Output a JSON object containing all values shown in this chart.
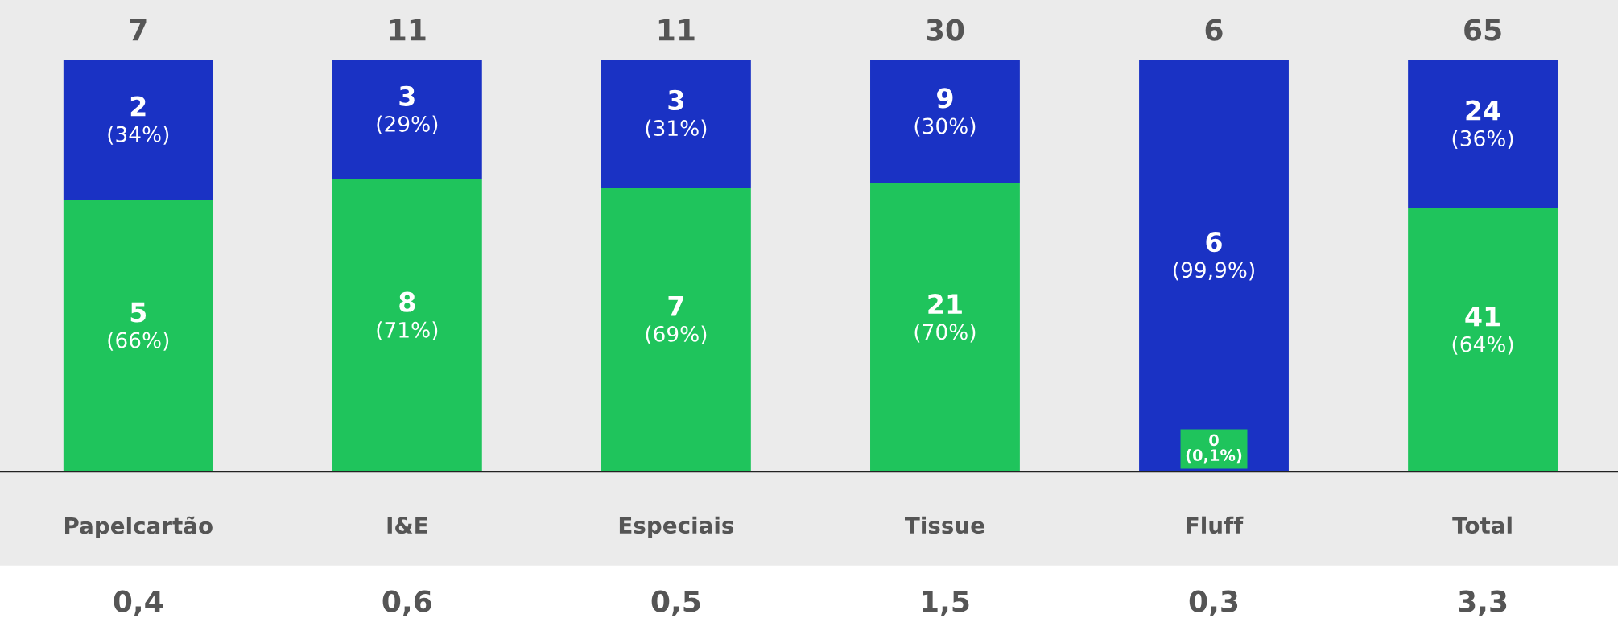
{
  "chart_data": {
    "type": "bar",
    "stacked": true,
    "ylim": [
      0,
      100
    ],
    "tick_labels": "x",
    "categories": [
      "Papelcartão",
      "I&E",
      "Especiais",
      "Tissue",
      "Fluff",
      "Total"
    ],
    "series": [
      {
        "color": "#1fc45c",
        "values": [
          66,
          71,
          69,
          70,
          0.1,
          64
        ],
        "value_labels": [
          "5\n(66%)",
          "8\n(71%)",
          "7\n(69%)",
          "21\n(70%)",
          "0\n(0,1%)",
          "41\n(64%)"
        ]
      },
      {
        "color": "#1a32c4",
        "values": [
          34,
          29,
          31,
          30,
          99.9,
          36
        ],
        "value_labels": [
          "2\n(34%)",
          "3\n(29%)",
          "3\n(31%)",
          "9\n(30%)",
          "6\n(99,9%)",
          "24\n(36%)"
        ]
      }
    ],
    "annotations": [
      {
        "text": "7",
        "x": "Papelcartão",
        "y": 100
      },
      {
        "text": "11",
        "x": "I&E",
        "y": 100
      },
      {
        "text": "11",
        "x": "Especiais",
        "y": 100
      },
      {
        "text": "30",
        "x": "Tissue",
        "y": 100
      },
      {
        "text": "6",
        "x": "Fluff",
        "y": 100
      },
      {
        "text": "65",
        "x": "Total",
        "y": 100
      },
      "0,4",
      "0,6",
      "0,5",
      "1,5",
      "0,3",
      "3,3"
    ],
    "grid": false
  }
}
